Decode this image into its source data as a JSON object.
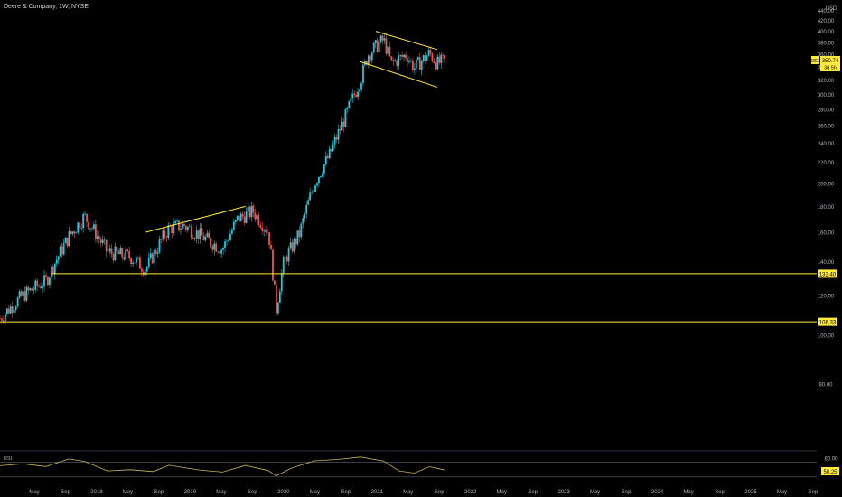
{
  "header": {
    "title": "Deere & Company, 1W, NYSE"
  },
  "colors": {
    "background": "#000000",
    "up": "#26c6da",
    "down": "#ef5350",
    "trendline": "#ffeb3b",
    "rsi": "#c9b458",
    "axis_text": "#b2b5be",
    "label_text": "#000000"
  },
  "chart_data": {
    "type": "candlestick",
    "symbol": "DE",
    "interval": "1W",
    "currency": "USD",
    "ylim": [
      60,
      450
    ],
    "scale": "log",
    "y_ticks": [
      80,
      100,
      120,
      140,
      160,
      180,
      200,
      220,
      240,
      260,
      280,
      300,
      320,
      340,
      360,
      380,
      400,
      420,
      440
    ],
    "x_ticks": [
      "May",
      "Sep",
      "2018",
      "May",
      "Sep",
      "2019",
      "May",
      "Sep",
      "2020",
      "May",
      "Sep",
      "2021",
      "May",
      "Sep",
      "2022",
      "May",
      "Sep",
      "2023",
      "May",
      "Sep",
      "2024",
      "May",
      "Sep",
      "2025",
      "May",
      "Sep"
    ],
    "x_range": [
      "2017-03",
      "2026-01"
    ],
    "price_path": [
      [
        "2017-03",
        108
      ],
      [
        "2017-06",
        120
      ],
      [
        "2017-09",
        128
      ],
      [
        "2017-12",
        157
      ],
      [
        "2018-02",
        172
      ],
      [
        "2018-05",
        146
      ],
      [
        "2018-08",
        143
      ],
      [
        "2018-10",
        135
      ],
      [
        "2019-01",
        163
      ],
      [
        "2019-03",
        165
      ],
      [
        "2019-05",
        158
      ],
      [
        "2019-08",
        148
      ],
      [
        "2019-10",
        170
      ],
      [
        "2019-12",
        176
      ],
      [
        "2020-02",
        160
      ],
      [
        "2020-03",
        112
      ],
      [
        "2020-04",
        140
      ],
      [
        "2020-06",
        158
      ],
      [
        "2020-08",
        200
      ],
      [
        "2020-10",
        228
      ],
      [
        "2020-12",
        270
      ],
      [
        "2021-02",
        320
      ],
      [
        "2021-03",
        360
      ],
      [
        "2021-05",
        385
      ],
      [
        "2021-06",
        345
      ],
      [
        "2021-08",
        360
      ],
      [
        "2021-09",
        338
      ],
      [
        "2021-10",
        350
      ],
      [
        "2021-11",
        362
      ],
      [
        "2021-12",
        345
      ],
      [
        "2022-01",
        350
      ]
    ],
    "last_price": {
      "label": "DE",
      "value": "350.74",
      "sub": "3d 5h"
    },
    "levels": [
      {
        "label": "132.40",
        "value": 132.4
      },
      {
        "label": "106.33",
        "value": 106.33
      }
    ],
    "trendlines": [
      {
        "from": [
          "2018-10",
          160
        ],
        "to": [
          "2019-11",
          180
        ]
      },
      {
        "from": [
          "2021-04",
          400
        ],
        "to": [
          "2021-12",
          368
        ]
      },
      {
        "from": [
          "2021-02",
          348
        ],
        "to": [
          "2021-12",
          310
        ]
      }
    ],
    "rsi": {
      "label": "RSI",
      "ylim": [
        20,
        90
      ],
      "ticks": [
        80,
        50
      ],
      "levels": [
        70,
        30
      ],
      "last_value": "50.25",
      "path": [
        [
          "2017-03",
          60
        ],
        [
          "2017-06",
          65
        ],
        [
          "2017-09",
          58
        ],
        [
          "2017-12",
          78
        ],
        [
          "2018-02",
          72
        ],
        [
          "2018-05",
          46
        ],
        [
          "2018-08",
          50
        ],
        [
          "2018-11",
          44
        ],
        [
          "2019-01",
          62
        ],
        [
          "2019-05",
          48
        ],
        [
          "2019-08",
          44
        ],
        [
          "2019-11",
          60
        ],
        [
          "2020-02",
          48
        ],
        [
          "2020-03",
          32
        ],
        [
          "2020-05",
          55
        ],
        [
          "2020-08",
          72
        ],
        [
          "2020-11",
          78
        ],
        [
          "2021-02",
          82
        ],
        [
          "2021-05",
          74
        ],
        [
          "2021-07",
          45
        ],
        [
          "2021-09",
          42
        ],
        [
          "2021-11",
          56
        ],
        [
          "2022-01",
          50
        ]
      ]
    }
  }
}
